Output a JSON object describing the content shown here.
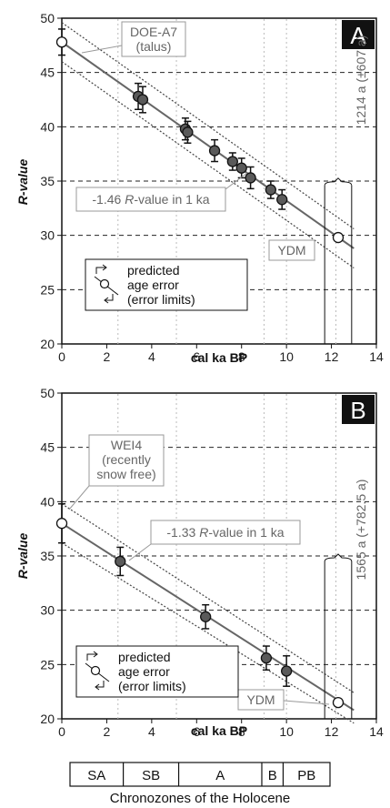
{
  "chart_data": [
    {
      "panel": "A",
      "type": "scatter",
      "xlabel": "cal ka BP",
      "ylabel": "R-value",
      "xlim": [
        0,
        14
      ],
      "ylim": [
        20,
        50
      ],
      "x_ticks": [
        0,
        2,
        4,
        6,
        8,
        10,
        12,
        14
      ],
      "y_ticks": [
        20,
        25,
        30,
        35,
        40,
        45,
        50
      ],
      "dashed_gridlines": [
        25,
        30,
        35,
        40,
        45
      ],
      "points": [
        {
          "x": 0.0,
          "y": 47.8,
          "err": 1.2,
          "open": true
        },
        {
          "x": 3.4,
          "y": 42.8,
          "err": 1.2,
          "open": false
        },
        {
          "x": 3.6,
          "y": 42.5,
          "err": 1.2,
          "open": false
        },
        {
          "x": 5.5,
          "y": 39.8,
          "err": 1.0,
          "open": false
        },
        {
          "x": 5.6,
          "y": 39.5,
          "err": 1.0,
          "open": false
        },
        {
          "x": 6.8,
          "y": 37.8,
          "err": 1.0,
          "open": false
        },
        {
          "x": 7.6,
          "y": 36.8,
          "err": 0.8,
          "open": false
        },
        {
          "x": 8.0,
          "y": 36.2,
          "err": 0.9,
          "open": false
        },
        {
          "x": 8.4,
          "y": 35.3,
          "err": 1.0,
          "open": false
        },
        {
          "x": 9.3,
          "y": 34.2,
          "err": 0.8,
          "open": false
        },
        {
          "x": 9.8,
          "y": 33.3,
          "err": 0.9,
          "open": false
        },
        {
          "x": 12.3,
          "y": 29.8,
          "err": 0,
          "open": true
        }
      ],
      "regression": {
        "x": [
          0,
          13
        ],
        "y": [
          47.8,
          28.8
        ]
      },
      "confidence_band": {
        "upper": [
          49.6,
          30.6
        ],
        "lower": [
          46.0,
          27.0
        ]
      },
      "error_bracket": {
        "x_from": 11.7,
        "x_to": 12.9,
        "y_top": 34.6
      },
      "labels": {
        "site": "DOE-A7",
        "site_note": "(talus)",
        "slope_prefix": "-1.46 ",
        "slope_italic": "R",
        "slope_suffix": "-value in 1 ka",
        "ydm": "YDM",
        "age_error": "1214 a (±607 a)",
        "legend_lines": [
          "predicted",
          "age error",
          "(error limits)"
        ],
        "panel_letter": "A"
      }
    },
    {
      "panel": "B",
      "type": "scatter",
      "xlabel": "cal ka BP",
      "ylabel": "R-value",
      "xlim": [
        0,
        14
      ],
      "ylim": [
        20,
        50
      ],
      "x_ticks": [
        0,
        2,
        4,
        6,
        8,
        10,
        12,
        14
      ],
      "y_ticks": [
        20,
        25,
        30,
        35,
        40,
        45,
        50
      ],
      "dashed_gridlines": [
        25,
        30,
        35,
        40,
        45
      ],
      "points": [
        {
          "x": 0.0,
          "y": 38.0,
          "err": 1.8,
          "open": true
        },
        {
          "x": 2.6,
          "y": 34.5,
          "err": 1.3,
          "open": false
        },
        {
          "x": 6.4,
          "y": 29.4,
          "err": 1.1,
          "open": false
        },
        {
          "x": 9.1,
          "y": 25.6,
          "err": 1.1,
          "open": false
        },
        {
          "x": 10.0,
          "y": 24.4,
          "err": 1.4,
          "open": false
        },
        {
          "x": 12.3,
          "y": 21.5,
          "err": 0,
          "open": true
        }
      ],
      "regression": {
        "x": [
          0,
          13
        ],
        "y": [
          38.0,
          20.8
        ]
      },
      "confidence_band": {
        "upper": [
          39.8,
          22.4
        ],
        "lower": [
          36.2,
          19.6
        ]
      },
      "error_bracket": {
        "x_from": 11.7,
        "x_to": 12.9,
        "y_top": 34.5
      },
      "labels": {
        "site": "WEI4",
        "site_note_1": "(recently",
        "site_note_2": "snow free)",
        "slope_prefix": "-1.33 ",
        "slope_italic": "R",
        "slope_suffix": "-value in 1 ka",
        "ydm": "YDM",
        "age_error": "1565 a (+782.5 a)",
        "legend_lines": [
          "predicted",
          "age error",
          "(error limits)"
        ],
        "panel_letter": "B"
      }
    }
  ],
  "chronozones": {
    "boundaries": [
      0,
      2.5,
      5.1,
      9.0,
      10.0,
      12.2
    ],
    "labels": [
      "SA",
      "SB",
      "A",
      "B",
      "PB"
    ],
    "caption": "Chronozones of the Holocene"
  },
  "colors": {
    "filled_point": "#5a5a5a",
    "open_point": "#ffffff",
    "regression_line": "#666666",
    "band_line": "#444444",
    "grid_line": "#222222",
    "annotation_text": "#666666",
    "annotation_box": "#999999",
    "panel_letter_bg": "#111111"
  }
}
